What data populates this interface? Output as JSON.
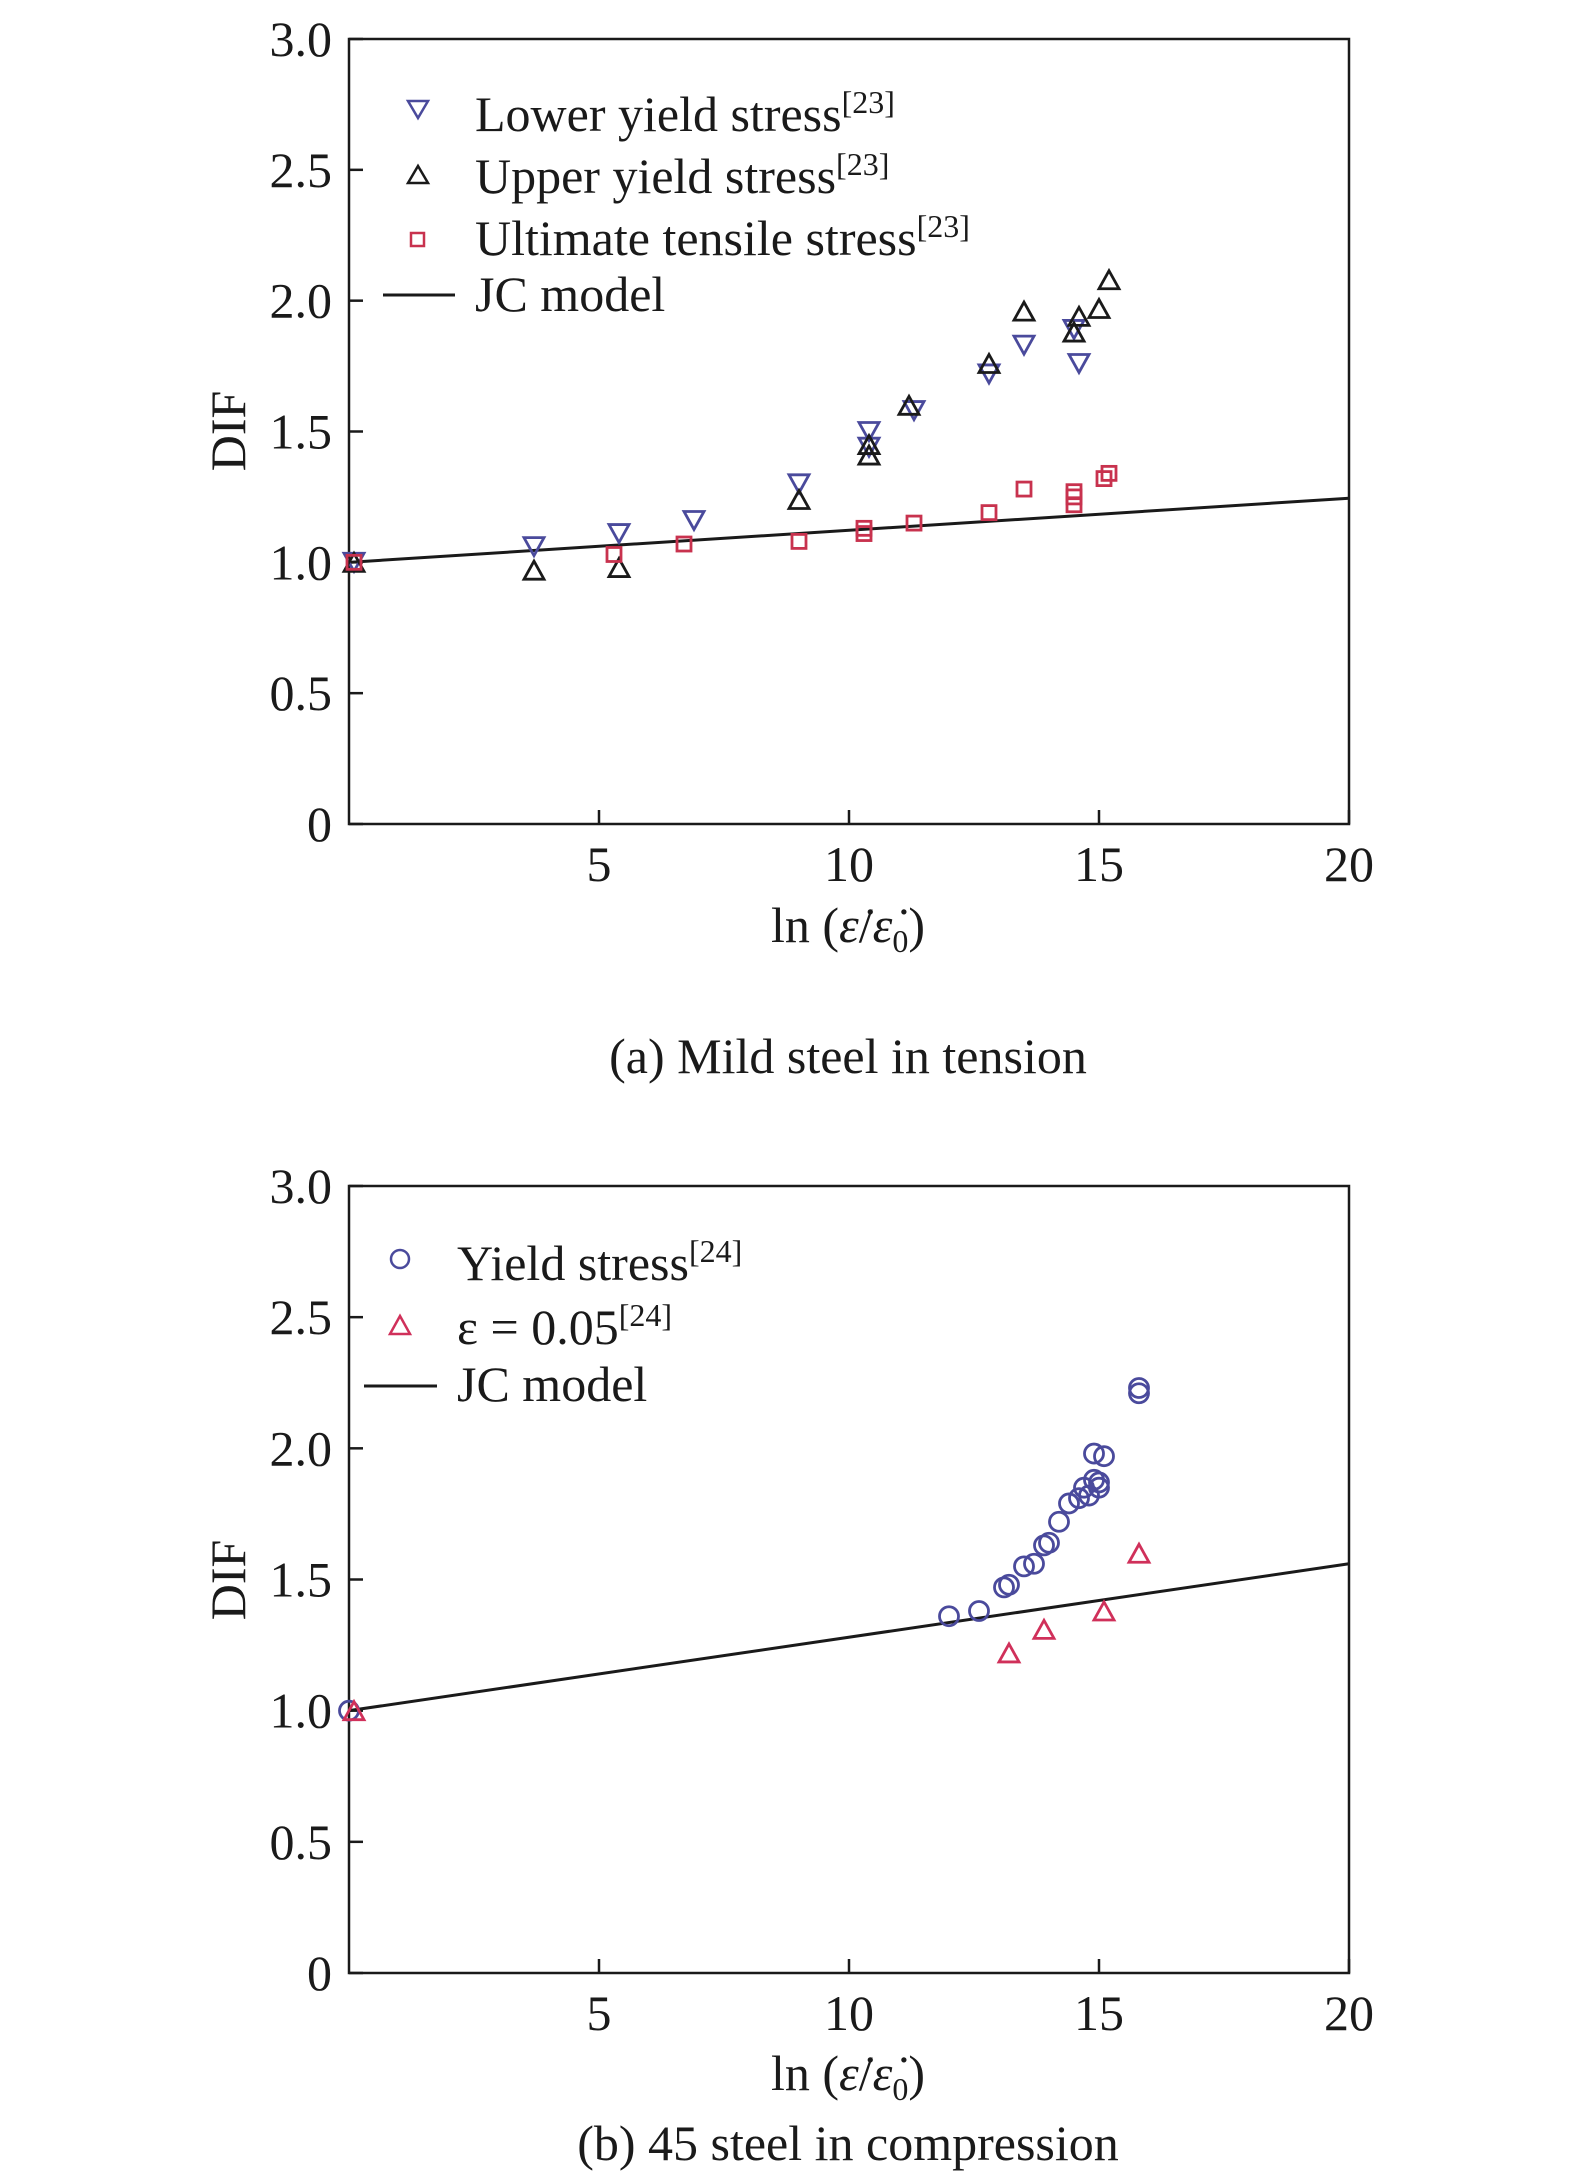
{
  "chart_data": [
    {
      "type": "scatter",
      "title": "",
      "caption": "(a) Mild steel in tension",
      "xlabel": "ln (ε̇/ε̇0)",
      "xlabel_parts": {
        "prefix": "ln (",
        "num": "ε̇",
        "slash": "/",
        "den": "ε̇",
        "sub": "0",
        "suffix": ")"
      },
      "ylabel": "DIF",
      "xlim": [
        0,
        20
      ],
      "ylim": [
        0,
        3.0
      ],
      "xticks": [
        5,
        10,
        15,
        20
      ],
      "xtick_labels": [
        "5",
        "10",
        "15",
        "20"
      ],
      "yticks": [
        0,
        0.5,
        1.0,
        1.5,
        2.0,
        2.5,
        3.0
      ],
      "ytick_labels": [
        "0",
        "0.5",
        "1.0",
        "1.5",
        "2.0",
        "2.5",
        "3.0"
      ],
      "legend_position": "top-left",
      "series": [
        {
          "name": "Lower yield stress",
          "ref": "[23]",
          "marker": "triangle-down",
          "color": "#4a4a9c",
          "points": [
            [
              0.1,
              1.0
            ],
            [
              3.7,
              1.06
            ],
            [
              5.4,
              1.11
            ],
            [
              6.9,
              1.16
            ],
            [
              9.0,
              1.3
            ],
            [
              10.4,
              1.5
            ],
            [
              10.4,
              1.44
            ],
            [
              11.3,
              1.58
            ],
            [
              12.8,
              1.72
            ],
            [
              13.5,
              1.83
            ],
            [
              14.5,
              1.89
            ],
            [
              14.6,
              1.76
            ]
          ]
        },
        {
          "name": "Upper yield stress",
          "ref": "[23]",
          "marker": "triangle-up",
          "color": "#1a1a1a",
          "points": [
            [
              0.1,
              1.0
            ],
            [
              3.7,
              0.97
            ],
            [
              5.4,
              0.98
            ],
            [
              9.0,
              1.24
            ],
            [
              10.4,
              1.41
            ],
            [
              10.4,
              1.45
            ],
            [
              11.2,
              1.6
            ],
            [
              12.8,
              1.76
            ],
            [
              13.5,
              1.96
            ],
            [
              14.5,
              1.88
            ],
            [
              14.6,
              1.94
            ],
            [
              15.0,
              1.97
            ],
            [
              15.2,
              2.08
            ]
          ]
        },
        {
          "name": "Ultimate tensile stress",
          "ref": "[23]",
          "marker": "square",
          "color": "#c8324e",
          "points": [
            [
              0.1,
              1.0
            ],
            [
              5.3,
              1.03
            ],
            [
              6.7,
              1.07
            ],
            [
              9.0,
              1.08
            ],
            [
              10.3,
              1.11
            ],
            [
              10.3,
              1.13
            ],
            [
              11.3,
              1.15
            ],
            [
              12.8,
              1.19
            ],
            [
              13.5,
              1.28
            ],
            [
              14.5,
              1.22
            ],
            [
              14.5,
              1.25
            ],
            [
              14.5,
              1.27
            ],
            [
              15.1,
              1.32
            ],
            [
              15.2,
              1.34
            ]
          ]
        },
        {
          "name": "JC model",
          "ref": "",
          "marker": "line",
          "color": "#1a1a1a",
          "points": [
            [
              0,
              1.0
            ],
            [
              20,
              1.245
            ]
          ]
        }
      ]
    },
    {
      "type": "scatter",
      "title": "",
      "caption": "(b) 45 steel in compression",
      "xlabel": "ln (ε̇/ε̇0)",
      "xlabel_parts": {
        "prefix": "ln (",
        "num": "ε̇",
        "slash": "/",
        "den": "ε̇",
        "sub": "0",
        "suffix": ")"
      },
      "ylabel": "DIF",
      "xlim": [
        0,
        20
      ],
      "ylim": [
        0,
        3.0
      ],
      "xticks": [
        5,
        10,
        15,
        20
      ],
      "xtick_labels": [
        "5",
        "10",
        "15",
        "20"
      ],
      "yticks": [
        0,
        0.5,
        1.0,
        1.5,
        2.0,
        2.5,
        3.0
      ],
      "ytick_labels": [
        "0",
        "0.5",
        "1.0",
        "1.5",
        "2.0",
        "2.5",
        "3.0"
      ],
      "legend_position": "top-left",
      "series": [
        {
          "name": "Yield stress",
          "ref": "[24]",
          "marker": "circle",
          "color": "#4a4a9c",
          "points": [
            [
              0.0,
              1.0
            ],
            [
              12.0,
              1.36
            ],
            [
              12.6,
              1.38
            ],
            [
              13.1,
              1.47
            ],
            [
              13.2,
              1.48
            ],
            [
              13.5,
              1.55
            ],
            [
              13.7,
              1.56
            ],
            [
              13.9,
              1.63
            ],
            [
              14.0,
              1.64
            ],
            [
              14.2,
              1.72
            ],
            [
              14.4,
              1.79
            ],
            [
              14.6,
              1.81
            ],
            [
              14.7,
              1.85
            ],
            [
              14.8,
              1.82
            ],
            [
              14.9,
              1.88
            ],
            [
              14.9,
              1.98
            ],
            [
              15.0,
              1.87
            ],
            [
              15.0,
              1.85
            ],
            [
              15.1,
              1.97
            ],
            [
              15.8,
              2.21
            ],
            [
              15.8,
              2.23
            ]
          ]
        },
        {
          "name": "ε = 0.05",
          "ref": "[24]",
          "marker": "triangle-up",
          "color": "#d0305a",
          "points": [
            [
              0.1,
              1.0
            ],
            [
              13.2,
              1.22
            ],
            [
              13.9,
              1.31
            ],
            [
              15.1,
              1.38
            ],
            [
              15.8,
              1.6
            ]
          ]
        },
        {
          "name": "JC model",
          "ref": "",
          "marker": "line",
          "color": "#1a1a1a",
          "points": [
            [
              0,
              1.0
            ],
            [
              20,
              1.56
            ]
          ]
        }
      ]
    }
  ]
}
